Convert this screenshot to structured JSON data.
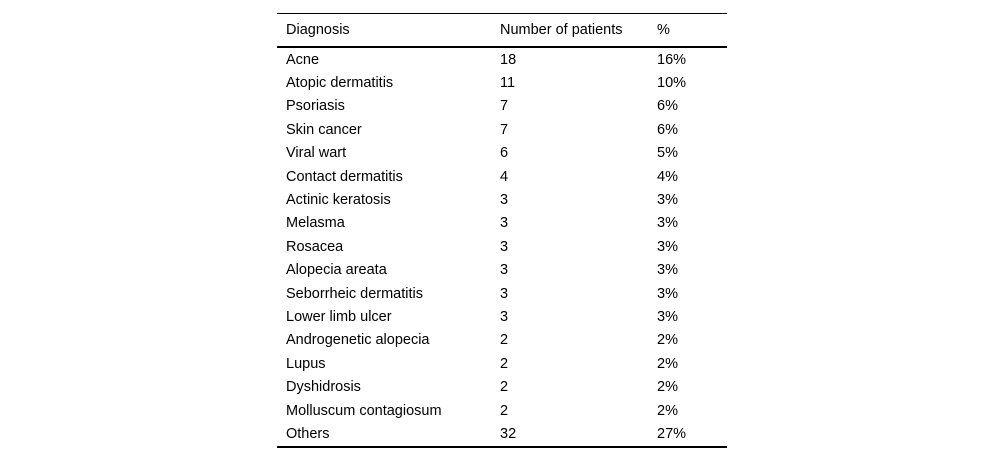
{
  "table": {
    "columns": [
      "Diagnosis",
      "Number of patients",
      "%"
    ],
    "rows": [
      [
        "Acne",
        "18",
        "16%"
      ],
      [
        "Atopic dermatitis",
        "11",
        "10%"
      ],
      [
        "Psoriasis",
        "7",
        "6%"
      ],
      [
        "Skin cancer",
        "7",
        "6%"
      ],
      [
        "Viral wart",
        "6",
        "5%"
      ],
      [
        "Contact dermatitis",
        "4",
        "4%"
      ],
      [
        "Actinic keratosis",
        "3",
        "3%"
      ],
      [
        "Melasma",
        "3",
        "3%"
      ],
      [
        "Rosacea",
        "3",
        "3%"
      ],
      [
        "Alopecia areata",
        "3",
        "3%"
      ],
      [
        "Seborrheic dermatitis",
        "3",
        "3%"
      ],
      [
        "Lower limb ulcer",
        "3",
        "3%"
      ],
      [
        "Androgenetic alopecia",
        "2",
        "2%"
      ],
      [
        "Lupus",
        "2",
        "2%"
      ],
      [
        "Dyshidrosis",
        "2",
        "2%"
      ],
      [
        "Molluscum contagiosum",
        "2",
        "2%"
      ],
      [
        "Others",
        "32",
        "27%"
      ]
    ]
  },
  "colors": {
    "text": "#000000",
    "rule": "#000000",
    "background": "#ffffff"
  },
  "chart_data": {
    "type": "table",
    "title": "",
    "columns": [
      "Diagnosis",
      "Number of patients",
      "%"
    ],
    "rows": [
      {
        "diagnosis": "Acne",
        "patients": 18,
        "percent": "16%"
      },
      {
        "diagnosis": "Atopic dermatitis",
        "patients": 11,
        "percent": "10%"
      },
      {
        "diagnosis": "Psoriasis",
        "patients": 7,
        "percent": "6%"
      },
      {
        "diagnosis": "Skin cancer",
        "patients": 7,
        "percent": "6%"
      },
      {
        "diagnosis": "Viral wart",
        "patients": 6,
        "percent": "5%"
      },
      {
        "diagnosis": "Contact dermatitis",
        "patients": 4,
        "percent": "4%"
      },
      {
        "diagnosis": "Actinic keratosis",
        "patients": 3,
        "percent": "3%"
      },
      {
        "diagnosis": "Melasma",
        "patients": 3,
        "percent": "3%"
      },
      {
        "diagnosis": "Rosacea",
        "patients": 3,
        "percent": "3%"
      },
      {
        "diagnosis": "Alopecia areata",
        "patients": 3,
        "percent": "3%"
      },
      {
        "diagnosis": "Seborrheic dermatitis",
        "patients": 3,
        "percent": "3%"
      },
      {
        "diagnosis": "Lower limb ulcer",
        "patients": 3,
        "percent": "3%"
      },
      {
        "diagnosis": "Androgenetic alopecia",
        "patients": 2,
        "percent": "2%"
      },
      {
        "diagnosis": "Lupus",
        "patients": 2,
        "percent": "2%"
      },
      {
        "diagnosis": "Dyshidrosis",
        "patients": 2,
        "percent": "2%"
      },
      {
        "diagnosis": "Molluscum contagiosum",
        "patients": 2,
        "percent": "2%"
      },
      {
        "diagnosis": "Others",
        "patients": 32,
        "percent": "27%"
      }
    ]
  }
}
